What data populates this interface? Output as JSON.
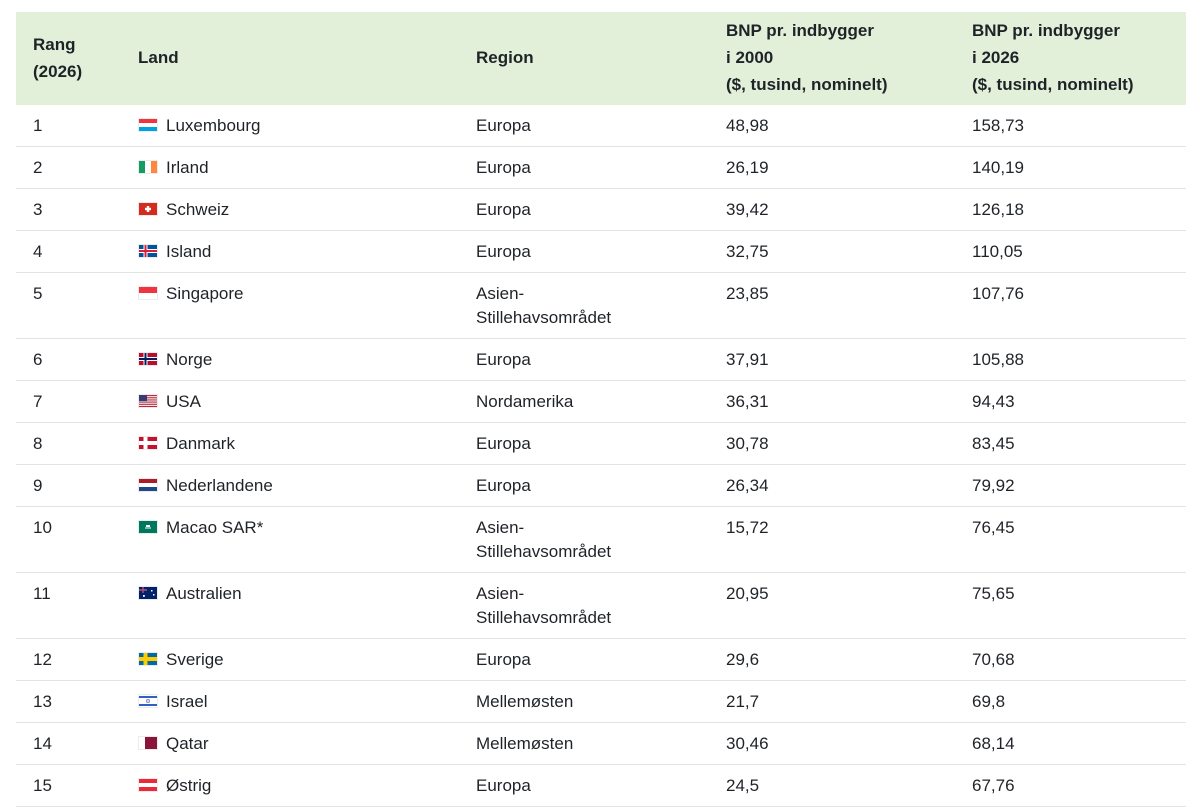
{
  "columns": {
    "rank": [
      "Rang",
      "(2026)"
    ],
    "land": "Land",
    "region": "Region",
    "gdp2000": [
      "BNP pr. indbygger",
      "i 2000",
      "($, tusind, nominelt)"
    ],
    "gdp2026": [
      "BNP pr. indbygger",
      "i 2026",
      "($, tusind, nominelt)"
    ]
  },
  "rows": [
    {
      "rank": "1",
      "country": "Luxembourg",
      "region": "Europa",
      "gdp2000": "48,98",
      "gdp2026": "158,73",
      "flag": "flag-luxembourg-icon",
      "flag_colors": [
        "#ef3340",
        "#ffffff",
        "#00a3e0"
      ],
      "flag_dir": "h"
    },
    {
      "rank": "2",
      "country": "Irland",
      "region": "Europa",
      "gdp2000": "26,19",
      "gdp2026": "140,19",
      "flag": "flag-ireland-icon",
      "flag_colors": [
        "#169b62",
        "#ffffff",
        "#ff883e"
      ],
      "flag_dir": "v"
    },
    {
      "rank": "3",
      "country": "Schweiz",
      "region": "Europa",
      "gdp2000": "39,42",
      "gdp2026": "126,18",
      "flag": "flag-switzerland-icon",
      "flag_colors": [
        "#d52b1e"
      ],
      "flag_dir": "swiss"
    },
    {
      "rank": "4",
      "country": "Island",
      "region": "Europa",
      "gdp2000": "32,75",
      "gdp2026": "110,05",
      "flag": "flag-iceland-icon",
      "flag_colors": [
        "#02529c",
        "#ffffff",
        "#dc1e35"
      ],
      "flag_dir": "nordic"
    },
    {
      "rank": "5",
      "country": "Singapore",
      "region": "Asien-\nStillehavsområdet",
      "gdp2000": "23,85",
      "gdp2026": "107,76",
      "flag": "flag-singapore-icon",
      "flag_colors": [
        "#ef3340",
        "#ffffff"
      ],
      "flag_dir": "h"
    },
    {
      "rank": "6",
      "country": "Norge",
      "region": "Europa",
      "gdp2000": "37,91",
      "gdp2026": "105,88",
      "flag": "flag-norway-icon",
      "flag_colors": [
        "#ba0c2f",
        "#ffffff",
        "#00205b"
      ],
      "flag_dir": "nordic"
    },
    {
      "rank": "7",
      "country": "USA",
      "region": "Nordamerika",
      "gdp2000": "36,31",
      "gdp2026": "94,43",
      "flag": "flag-usa-icon",
      "flag_colors": [
        "#b22234",
        "#ffffff",
        "#3c3b6e"
      ],
      "flag_dir": "usa"
    },
    {
      "rank": "8",
      "country": "Danmark",
      "region": "Europa",
      "gdp2000": "30,78",
      "gdp2026": "83,45",
      "flag": "flag-denmark-icon",
      "flag_colors": [
        "#c8102e",
        "#ffffff",
        "#ffffff"
      ],
      "flag_dir": "nordic"
    },
    {
      "rank": "9",
      "country": "Nederlandene",
      "region": "Europa",
      "gdp2000": "26,34",
      "gdp2026": "79,92",
      "flag": "flag-netherlands-icon",
      "flag_colors": [
        "#ae1c28",
        "#ffffff",
        "#21468b"
      ],
      "flag_dir": "h"
    },
    {
      "rank": "10",
      "country": "Macao SAR*",
      "region": "Asien-\nStillehavsområdet",
      "gdp2000": "15,72",
      "gdp2026": "76,45",
      "flag": "flag-macao-icon",
      "flag_colors": [
        "#00785e",
        "#ffffff"
      ],
      "flag_dir": "macao"
    },
    {
      "rank": "11",
      "country": "Australien",
      "region": "Asien-\nStillehavsområdet",
      "gdp2000": "20,95",
      "gdp2026": "75,65",
      "flag": "flag-australia-icon",
      "flag_colors": [
        "#012169",
        "#ffffff",
        "#e4002b"
      ],
      "flag_dir": "aus"
    },
    {
      "rank": "12",
      "country": "Sverige",
      "region": "Europa",
      "gdp2000": "29,6",
      "gdp2026": "70,68",
      "flag": "flag-sweden-icon",
      "flag_colors": [
        "#006aa7",
        "#fecc00",
        "#fecc00"
      ],
      "flag_dir": "nordic"
    },
    {
      "rank": "13",
      "country": "Israel",
      "region": "Mellemøsten",
      "gdp2000": "21,7",
      "gdp2026": "69,8",
      "flag": "flag-israel-icon",
      "flag_colors": [
        "#ffffff",
        "#0038b8"
      ],
      "flag_dir": "israel"
    },
    {
      "rank": "14",
      "country": "Qatar",
      "region": "Mellemøsten",
      "gdp2000": "30,46",
      "gdp2026": "68,14",
      "flag": "flag-qatar-icon",
      "flag_colors": [
        "#ffffff",
        "#8a1538"
      ],
      "flag_dir": "qatar"
    },
    {
      "rank": "15",
      "country": "Østrig",
      "region": "Europa",
      "gdp2000": "24,5",
      "gdp2026": "67,76",
      "flag": "flag-austria-icon",
      "flag_colors": [
        "#ed2939",
        "#ffffff",
        "#ed2939"
      ],
      "flag_dir": "h"
    }
  ],
  "theme": {
    "header_bg": "#e2f0d9",
    "row_border": "#e3e3e3"
  }
}
